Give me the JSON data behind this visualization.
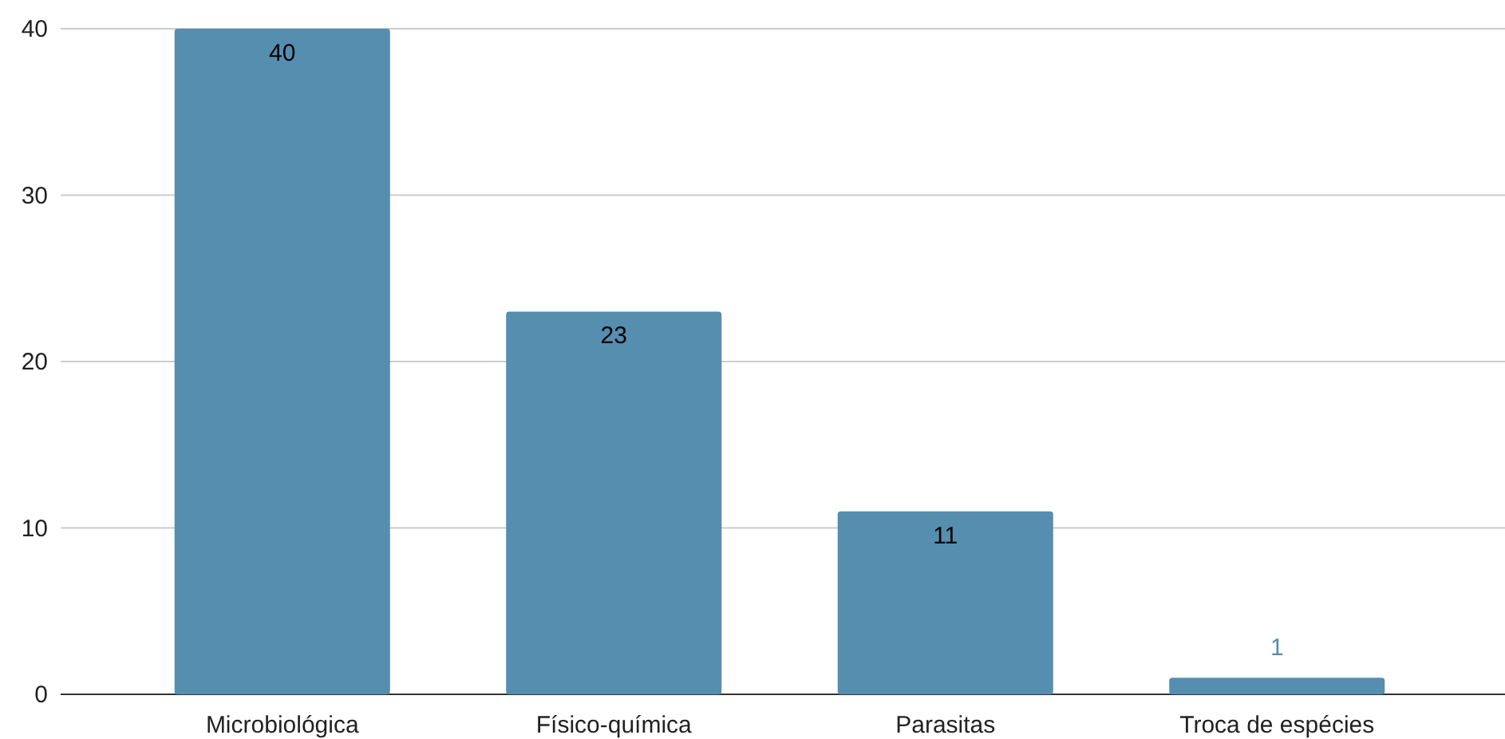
{
  "chart_data": {
    "type": "bar",
    "categories": [
      "Microbiológica",
      "Físico-química",
      "Parasitas",
      "Troca de espécies"
    ],
    "values": [
      40,
      23,
      11,
      1
    ],
    "color": "#568eb0",
    "ylim": [
      0,
      40
    ],
    "yticks": [
      0,
      10,
      20,
      30,
      40
    ],
    "grid": "y",
    "data_labels": true
  }
}
